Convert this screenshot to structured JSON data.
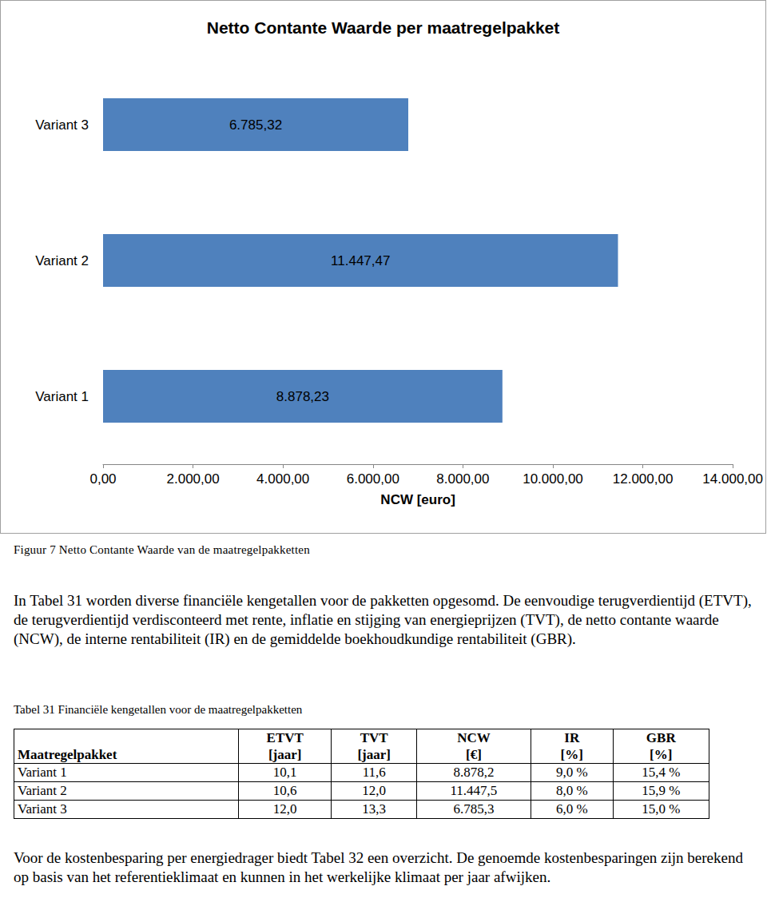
{
  "chart_data": {
    "type": "bar",
    "title": "Netto Contante Waarde per maatregelpakket",
    "orientation": "horizontal",
    "categories": [
      "Variant 1",
      "Variant 2",
      "Variant 3"
    ],
    "values": [
      8878.23,
      11447.47,
      6785.32
    ],
    "value_labels": [
      "8.878,23",
      "11.447,47",
      "6.785,32"
    ],
    "data_labels": true,
    "color": "#4f81bd",
    "xlabel": "NCW [euro]",
    "xlim": [
      0,
      14000
    ],
    "xticks": [
      {
        "value": 0,
        "label": "0,00"
      },
      {
        "value": 2000,
        "label": "2.000,00"
      },
      {
        "value": 4000,
        "label": "4.000,00"
      },
      {
        "value": 6000,
        "label": "6.000,00"
      },
      {
        "value": 8000,
        "label": "8.000,00"
      },
      {
        "value": 10000,
        "label": "10.000,00"
      },
      {
        "value": 12000,
        "label": "12.000,00"
      },
      {
        "value": 14000,
        "label": "14.000,00"
      }
    ],
    "grid": false
  },
  "document": {
    "figure_caption": "Figuur 7  Netto Contante Waarde van de maatregelpakketten",
    "paragraph_1": "In Tabel 31 worden diverse financiële kengetallen voor de pakketten opgesomd. De eenvoudige terugverdientijd (ETVT), de terugverdientijd verdisconteerd met rente, inflatie en stijging van energieprijzen (TVT), de netto contante waarde (NCW), de interne rentabiliteit (IR) en de gemiddelde boekhoudkundige rentabiliteit (GBR).",
    "table_caption": "Tabel 31  Financiële kengetallen voor de maatregelpakketten",
    "table": {
      "header": [
        [
          "Maatregelpakket"
        ],
        [
          "ETVT",
          "[jaar]"
        ],
        [
          "TVT",
          "[jaar]"
        ],
        [
          "NCW",
          "[€]"
        ],
        [
          "IR",
          "[%]"
        ],
        [
          "GBR",
          "[%]"
        ]
      ],
      "rows": [
        [
          "Variant 1",
          "10,1",
          "11,6",
          "8.878,2",
          "9,0 %",
          "15,4 %"
        ],
        [
          "Variant 2",
          "10,6",
          "12,0",
          "11.447,5",
          "8,0 %",
          "15,9 %"
        ],
        [
          "Variant 3",
          "12,0",
          "13,3",
          "6.785,3",
          "6,0 %",
          "15,0 %"
        ]
      ]
    },
    "paragraph_2": "Voor de kostenbesparing per energiedrager biedt Tabel 32 een overzicht. De genoemde kostenbesparingen zijn berekend op basis van het referentieklimaat en kunnen in het werkelijke klimaat per jaar afwijken."
  }
}
